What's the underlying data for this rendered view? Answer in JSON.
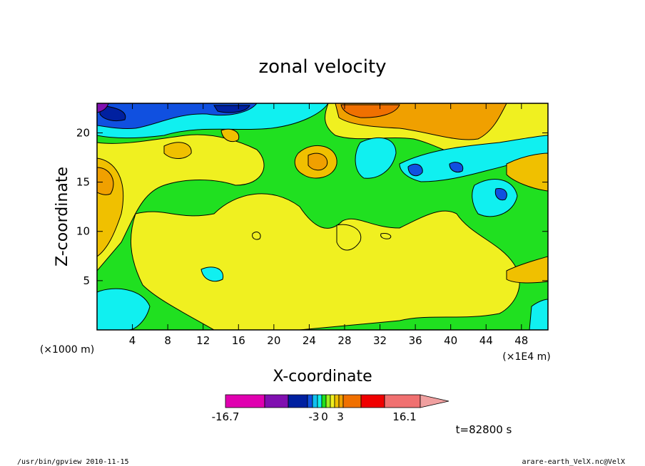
{
  "chart_data": {
    "type": "heatmap",
    "title": "zonal velocity",
    "xlabel": "X-coordinate",
    "ylabel": "Z-coordinate",
    "x_unit_left": "(×1000 m)",
    "x_unit_right": "(×1E4 m)",
    "x_ticks": [
      "4",
      "8",
      "12",
      "16",
      "20",
      "24",
      "28",
      "32",
      "36",
      "40",
      "44",
      "48"
    ],
    "y_ticks": [
      "5",
      "10",
      "15",
      "20"
    ],
    "xlim": [
      0,
      51
    ],
    "ylim": [
      0,
      23
    ],
    "colorbar": {
      "tick_labels": [
        "-16.7",
        "-3",
        "0",
        "3",
        "16.1"
      ],
      "colors": [
        "#e000b0",
        "#8010b0",
        "#0020a0",
        "#1050e0",
        "#10c0f0",
        "#10f0f0",
        "#20e020",
        "#a0f020",
        "#f0f020",
        "#f0c000",
        "#f0a000",
        "#f07000",
        "#f00000",
        "#f07070",
        "#f0a0a0"
      ]
    },
    "time_label": "t=82800 s",
    "regions": [
      {
        "label": "dark blue/purple cells near top-left",
        "z_range": [
          18,
          23
        ],
        "x_range": [
          0,
          18
        ]
      },
      {
        "label": "orange/red maxima near top center",
        "z_range": [
          19,
          23
        ],
        "x_range": [
          27,
          44
        ]
      },
      {
        "label": "yellow core low levels",
        "z_range": [
          1,
          13
        ],
        "x_range": [
          12,
          47
        ]
      },
      {
        "label": "cyan pool lower left",
        "z_range": [
          0,
          4
        ],
        "x_range": [
          0,
          7
        ]
      }
    ]
  },
  "footer": {
    "left": "/usr/bin/gpview   2010-11-15",
    "right": "arare-earth_VelX.nc@VelX"
  }
}
